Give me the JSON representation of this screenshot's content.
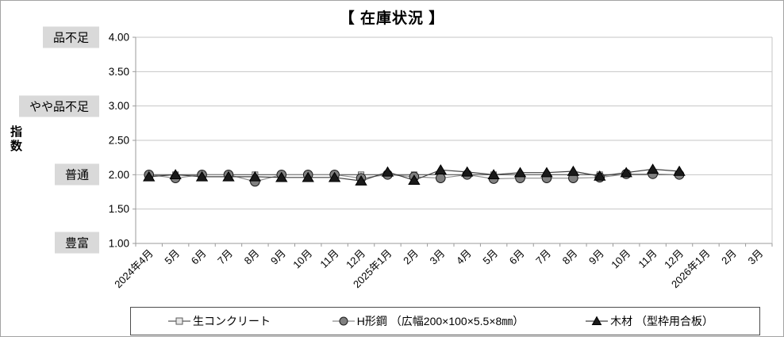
{
  "title": "【 在庫状況 】",
  "y_axis_title": "指数",
  "level_labels": [
    {
      "text": "品不足",
      "value": 4.0
    },
    {
      "text": "やや品不足",
      "value": 3.0
    },
    {
      "text": "普通",
      "value": 2.0
    },
    {
      "text": "豊富",
      "value": 1.0
    }
  ],
  "colors": {
    "gridline": "#c6c6c6",
    "axis": "#9b9b9b",
    "level_label_bg": "#d9d9d9",
    "legend_border": "#4d4d4d",
    "outer_border": "#a3a3a3"
  },
  "chart_data": {
    "type": "line",
    "title": "【 在庫状況 】",
    "xlabel": "",
    "ylabel": "指数",
    "ylim": [
      1.0,
      4.0
    ],
    "y_step": 0.5,
    "y_tick_labels": [
      "1.00",
      "1.50",
      "2.00",
      "2.50",
      "3.00",
      "3.50",
      "4.00"
    ],
    "grid": true,
    "legend_position": "bottom",
    "categories": [
      "2024年4月",
      "5月",
      "6月",
      "7月",
      "8月",
      "9月",
      "10月",
      "11月",
      "12月",
      "2025年1月",
      "2月",
      "3月",
      "4月",
      "5月",
      "6月",
      "7月",
      "8月",
      "9月",
      "10月",
      "11月",
      "12月",
      "2026年1月",
      "2月",
      "3月"
    ],
    "series": [
      {
        "name": "生コンクリート",
        "marker": "square",
        "marker_fill": "#e6e6e6",
        "marker_stroke": "#595959",
        "line_color": "#595959",
        "values": [
          2.0,
          2.0,
          2.0,
          2.0,
          2.0,
          2.0,
          2.0,
          2.0,
          2.0,
          2.0,
          2.0,
          2.0,
          2.0,
          2.0,
          2.0,
          2.0,
          2.0,
          2.0,
          2.0,
          2.0,
          2.0,
          null,
          null,
          null
        ]
      },
      {
        "name": "H形鋼 （広幅200×100×5.5×8㎜）",
        "marker": "circle",
        "marker_fill": "#808080",
        "marker_stroke": "#1a1a1a",
        "line_color": "#8c8c8c",
        "values": [
          2.0,
          1.95,
          2.0,
          2.0,
          1.9,
          2.0,
          2.0,
          2.0,
          1.95,
          2.0,
          1.97,
          1.95,
          2.0,
          1.94,
          1.95,
          1.95,
          1.95,
          1.96,
          2.01,
          2.01,
          2.0,
          null,
          null,
          null
        ]
      },
      {
        "name": "木材 （型枠用合板）",
        "marker": "triangle",
        "marker_fill": "#1a1a1a",
        "marker_stroke": "#000000",
        "line_color": "#404040",
        "values": [
          1.97,
          2.0,
          1.97,
          1.97,
          1.97,
          1.96,
          1.96,
          1.96,
          1.91,
          2.04,
          1.92,
          2.07,
          2.04,
          2.0,
          2.03,
          2.03,
          2.05,
          1.98,
          2.03,
          2.08,
          2.05,
          null,
          null,
          null
        ]
      }
    ]
  }
}
